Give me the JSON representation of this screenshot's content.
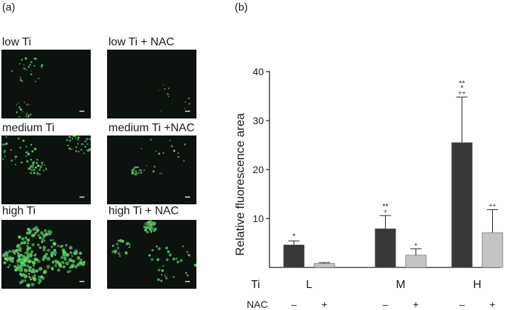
{
  "panels": {
    "a_label": "(a)",
    "b_label": "(b)"
  },
  "images": [
    {
      "label": "low Ti",
      "density": "sparse"
    },
    {
      "label": "low Ti + NAC",
      "density": "very-sparse"
    },
    {
      "label": "medium Ti",
      "density": "clustered"
    },
    {
      "label": "medium Ti +NAC",
      "density": "small-cluster"
    },
    {
      "label": "high Ti",
      "density": "dense"
    },
    {
      "label": "high Ti + NAC",
      "density": "moderate"
    }
  ],
  "chart_data": {
    "type": "bar",
    "ylabel": "Relative fluorescence area",
    "ylim": [
      0,
      40
    ],
    "yticks": [
      10,
      20,
      30,
      40
    ],
    "groups": [
      "L",
      "M",
      "H"
    ],
    "row_labels": {
      "ti": "Ti",
      "nac": "NAC"
    },
    "nac_marks": [
      "–",
      "+"
    ],
    "series": [
      {
        "nac": "–",
        "color": "#383838",
        "values": [
          4.6,
          7.9,
          25.5
        ],
        "errors": [
          0.8,
          2.7,
          9.3
        ],
        "annotations": [
          "*",
          "**\n+",
          "**\n*\n++"
        ]
      },
      {
        "nac": "+",
        "color": "#c4c4c4",
        "values": [
          0.8,
          2.5,
          7.1
        ],
        "errors": [
          0.2,
          1.3,
          4.7
        ],
        "annotations": [
          "",
          "+",
          "++"
        ]
      }
    ]
  }
}
